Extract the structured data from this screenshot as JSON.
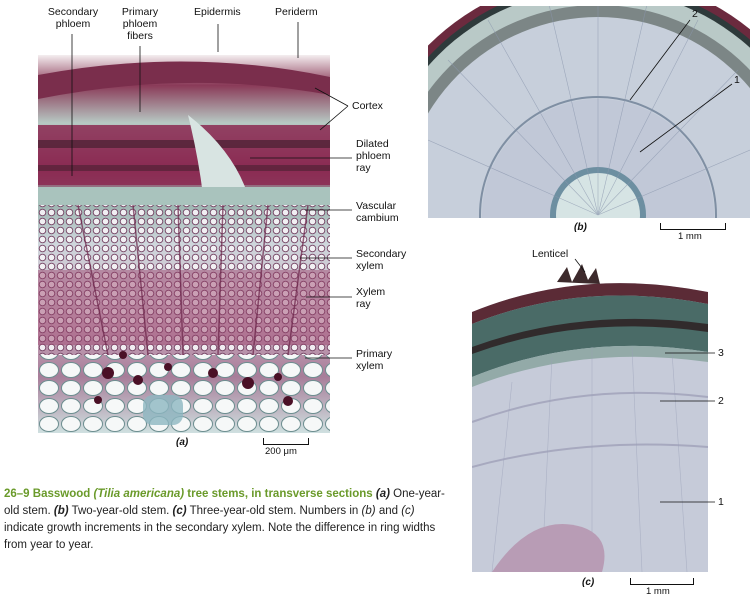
{
  "panel_a": {
    "labels_top": {
      "secondary_phloem_l1": "Secondary",
      "secondary_phloem_l2": "phloem",
      "primary_phloem_l1": "Primary",
      "primary_phloem_l2": "phloem",
      "primary_phloem_l3": "fibers",
      "epidermis": "Epidermis",
      "periderm": "Periderm"
    },
    "labels_right": {
      "cortex": "Cortex",
      "dilated_l1": "Dilated",
      "dilated_l2": "phloem",
      "dilated_l3": "ray",
      "vascular_l1": "Vascular",
      "vascular_l2": "cambium",
      "secxylem_l1": "Secondary",
      "secxylem_l2": "xylem",
      "xylemray_l1": "Xylem",
      "xylemray_l2": "ray",
      "primxylem_l1": "Primary",
      "primxylem_l2": "xylem"
    },
    "tag": "(a)",
    "scale": "200 μm"
  },
  "panel_b": {
    "tag": "(b)",
    "scale": "1 mm",
    "ring_1": "1",
    "ring_2": "2"
  },
  "panel_c": {
    "tag": "(c)",
    "scale": "1 mm",
    "lenticel": "Lenticel",
    "ring_1": "1",
    "ring_2": "2",
    "ring_3": "3"
  },
  "caption": {
    "number": "26–9",
    "title_a": "Basswood",
    "species": "(Tilia americana)",
    "title_b": "tree stems, in transverse sections",
    "a_tag": "(a)",
    "a_text": "One-year-old stem.",
    "b_tag": "(b)",
    "b_text": "Two-year-old stem.",
    "c_tag": "(c)",
    "c_text": "Three-year-old stem. Numbers in",
    "b2_tag": "(b)",
    "and": "and",
    "c2_tag": "(c)",
    "rest": "indicate growth increments in the secondary xylem. Note the difference in ring widths from year to year."
  }
}
